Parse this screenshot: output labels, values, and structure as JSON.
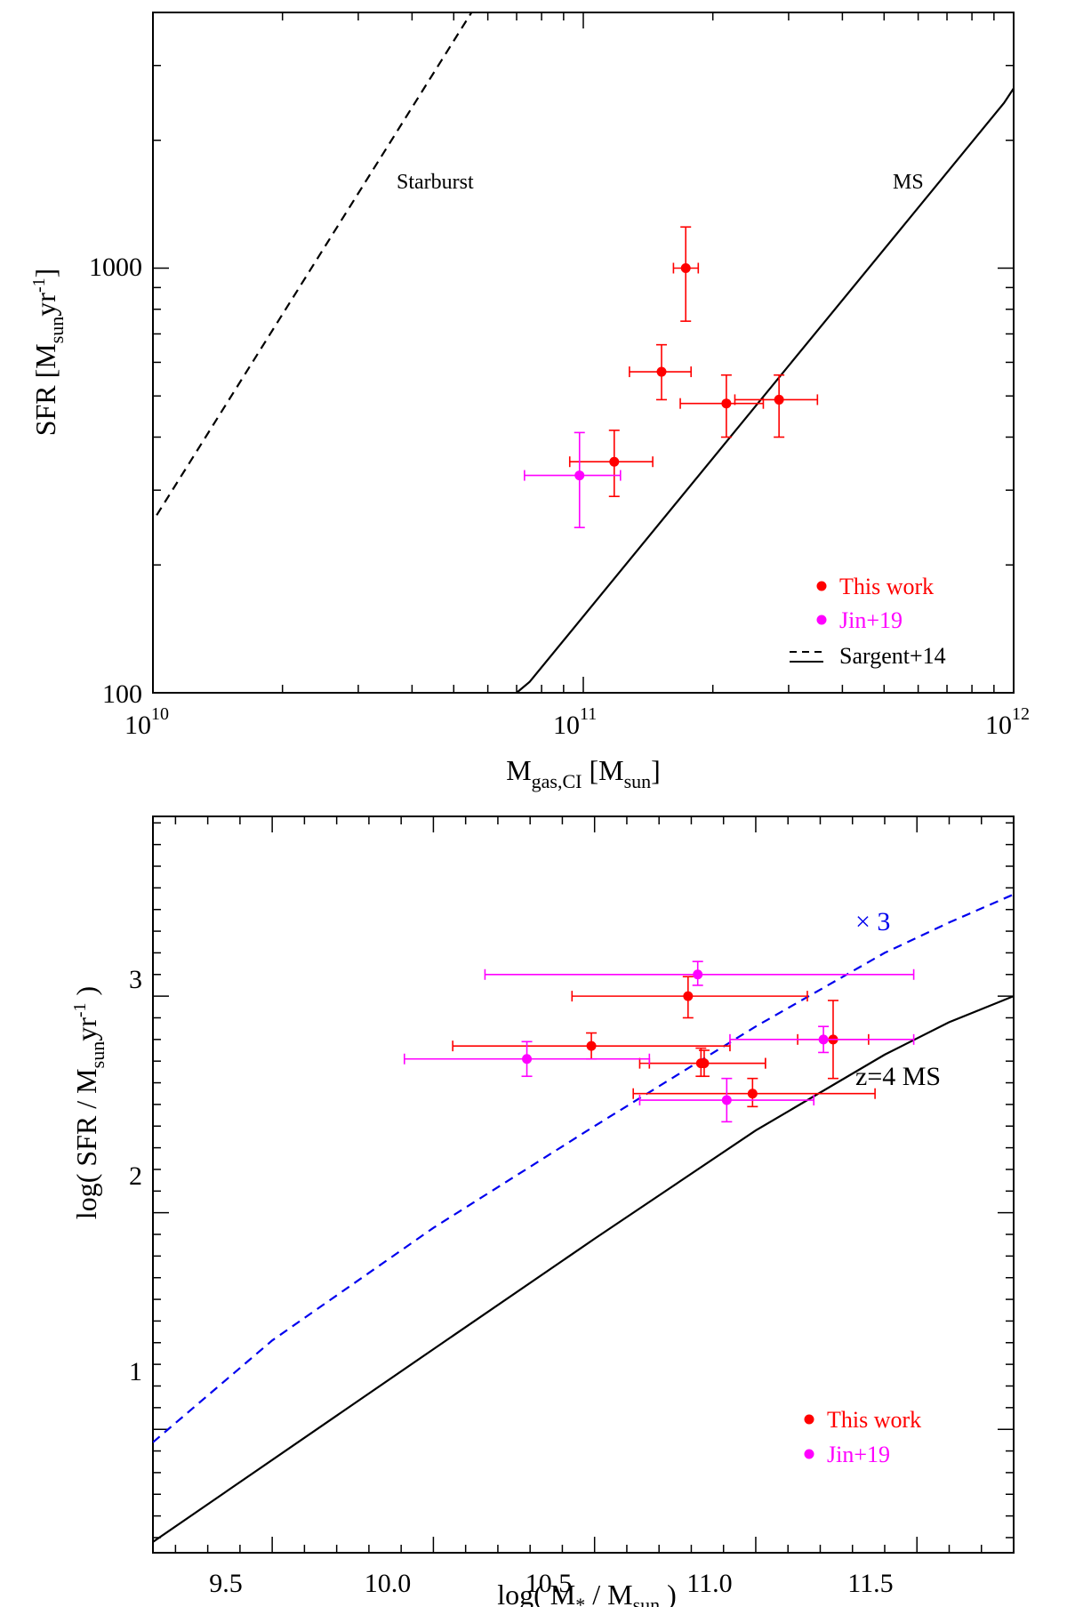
{
  "chart_data": [
    {
      "type": "scatter",
      "xscale": "log",
      "yscale": "log",
      "xlim": [
        10000000000.0,
        1000000000000.0
      ],
      "ylim": [
        100,
        4000
      ],
      "xlabel": {
        "main": "M",
        "sub": "gas,CI",
        "rest": " [M",
        "sub2": "sun",
        "end": "]"
      },
      "ylabel": {
        "main": "SFR [M",
        "sub": "sun",
        "mid": "yr",
        "sup": "-1",
        "end": "]"
      },
      "xticks": [
        {
          "value": 10000000000.0,
          "base": "10",
          "exp": "10"
        },
        {
          "value": 100000000000.0,
          "base": "10",
          "exp": "11"
        },
        {
          "value": 1000000000000.0,
          "base": "10",
          "exp": "12"
        }
      ],
      "yticks": [
        {
          "value": 100,
          "label": "100"
        },
        {
          "value": 1000,
          "label": "1000"
        }
      ],
      "series": [
        {
          "name": "This work",
          "color": "#ff0000",
          "points": [
            {
              "x": 173000000000.0,
              "y": 1000,
              "xlo": 162000000000.0,
              "xhi": 185000000000.0,
              "ylo": 750,
              "yhi": 1250
            },
            {
              "x": 152000000000.0,
              "y": 570,
              "xlo": 128000000000.0,
              "xhi": 178000000000.0,
              "ylo": 490,
              "yhi": 660
            },
            {
              "x": 215000000000.0,
              "y": 480,
              "xlo": 168000000000.0,
              "xhi": 262000000000.0,
              "ylo": 400,
              "yhi": 560
            },
            {
              "x": 285000000000.0,
              "y": 490,
              "xlo": 225000000000.0,
              "xhi": 350000000000.0,
              "ylo": 400,
              "yhi": 560
            },
            {
              "x": 118000000000.0,
              "y": 350,
              "xlo": 93000000000.0,
              "xhi": 145000000000.0,
              "ylo": 290,
              "yhi": 415
            }
          ]
        },
        {
          "name": "Jin+19",
          "color": "#ff00ff",
          "points": [
            {
              "x": 98000000000.0,
              "y": 325,
              "xlo": 73000000000.0,
              "xhi": 122000000000.0,
              "ylo": 245,
              "yhi": 410
            }
          ]
        }
      ],
      "lines": [
        {
          "name": "Starburst",
          "style": "dashed",
          "color": "#000000",
          "x": [
            10200000000.0,
            55000000000.0
          ],
          "y": [
            262,
            4000
          ]
        },
        {
          "name": "MS",
          "style": "solid",
          "color": "#000000",
          "x": [
            70000000000.0,
            75000000000.0,
            950000000000.0,
            1000000000000.0
          ],
          "y": [
            100,
            106,
            2450,
            2650
          ]
        }
      ],
      "annotations": [
        {
          "text": "Starburst",
          "x": 44000000000.0,
          "y": 1700
        },
        {
          "text": "MS",
          "x": 450000000000.0,
          "y": 1700
        }
      ],
      "legend": {
        "position": "bottom-right",
        "entries": [
          {
            "label": "This work",
            "color": "#ff0000",
            "marker": "dot"
          },
          {
            "label": "Jin+19",
            "color": "#ff00ff",
            "marker": "dot"
          },
          {
            "label": "Sargent+14",
            "color": "#000000",
            "marker": "dashed-solid"
          }
        ]
      }
    },
    {
      "type": "scatter",
      "xscale": "linear",
      "yscale": "linear",
      "xlim": [
        9.13,
        11.8
      ],
      "ylim": [
        0.43,
        3.83
      ],
      "xlabel": {
        "main": "log( M",
        "sub": "*",
        "mid": " / M",
        "sub2": "sun",
        "end": " )"
      },
      "ylabel": {
        "main": "log( SFR / M",
        "sub": "sun",
        "mid": "yr",
        "sup": "-1",
        "end": " )"
      },
      "xticks": [
        {
          "value": 9.5,
          "label": "9.5"
        },
        {
          "value": 10.0,
          "label": "10.0"
        },
        {
          "value": 10.5,
          "label": "10.5"
        },
        {
          "value": 11.0,
          "label": "11.0"
        },
        {
          "value": 11.5,
          "label": "11.5"
        }
      ],
      "yticks": [
        {
          "value": 1,
          "label": "1"
        },
        {
          "value": 2,
          "label": "2"
        },
        {
          "value": 3,
          "label": "3"
        }
      ],
      "series": [
        {
          "name": "This work",
          "color": "#ff0000",
          "points": [
            {
              "x": 10.79,
              "y": 3.0,
              "xlo": 10.43,
              "xhi": 11.16,
              "ylo": 2.9,
              "yhi": 3.09
            },
            {
              "x": 10.49,
              "y": 2.77,
              "xlo": 10.06,
              "xhi": 10.92,
              "ylo": 2.71,
              "yhi": 2.83
            },
            {
              "x": 10.84,
              "y": 2.69,
              "xlo": 10.67,
              "xhi": 11.03,
              "ylo": 2.63,
              "yhi": 2.75
            },
            {
              "x": 10.83,
              "y": 2.69,
              "xlo": 10.64,
              "xhi": 11.03,
              "ylo": 2.63,
              "yhi": 2.76
            },
            {
              "x": 10.99,
              "y": 2.55,
              "xlo": 10.62,
              "xhi": 11.37,
              "ylo": 2.49,
              "yhi": 2.62
            },
            {
              "x": 11.24,
              "y": 2.8,
              "xlo": 11.13,
              "xhi": 11.35,
              "ylo": 2.62,
              "yhi": 2.98
            }
          ]
        },
        {
          "name": "Jin+19",
          "color": "#ff00ff",
          "points": [
            {
              "x": 10.82,
              "y": 3.1,
              "xlo": 10.16,
              "xhi": 11.49,
              "ylo": 3.05,
              "yhi": 3.16
            },
            {
              "x": 10.29,
              "y": 2.71,
              "xlo": 9.91,
              "xhi": 10.67,
              "ylo": 2.63,
              "yhi": 2.79
            },
            {
              "x": 11.21,
              "y": 2.8,
              "xlo": 10.92,
              "xhi": 11.49,
              "ylo": 2.74,
              "yhi": 2.86
            },
            {
              "x": 10.91,
              "y": 2.52,
              "xlo": 10.64,
              "xhi": 11.18,
              "ylo": 2.42,
              "yhi": 2.62
            }
          ]
        }
      ],
      "lines": [
        {
          "name": "z=4 MS",
          "style": "solid",
          "color": "#000000",
          "x": [
            9.13,
            10.0,
            10.5,
            11.0,
            11.4,
            11.6,
            11.8
          ],
          "y": [
            0.48,
            1.37,
            1.88,
            2.38,
            2.73,
            2.88,
            3.0
          ]
        },
        {
          "name": "× 3",
          "style": "dashed",
          "color": "#0000ee",
          "x": [
            9.13,
            9.5,
            10.0,
            10.5,
            11.0,
            11.4,
            11.6,
            11.8
          ],
          "y": [
            0.94,
            1.41,
            1.93,
            2.4,
            2.86,
            3.2,
            3.34,
            3.47
          ]
        }
      ],
      "annotations": [
        {
          "text": "× 3",
          "x": 11.33,
          "y": 3.31,
          "color": "#0000ee"
        },
        {
          "text": "z=4 MS",
          "x": 11.52,
          "y": 2.55,
          "color": "#000000"
        }
      ],
      "legend": {
        "position": "bottom-right",
        "entries": [
          {
            "label": "This work",
            "color": "#ff0000",
            "marker": "dot"
          },
          {
            "label": "Jin+19",
            "color": "#ff00ff",
            "marker": "dot"
          }
        ]
      }
    }
  ]
}
